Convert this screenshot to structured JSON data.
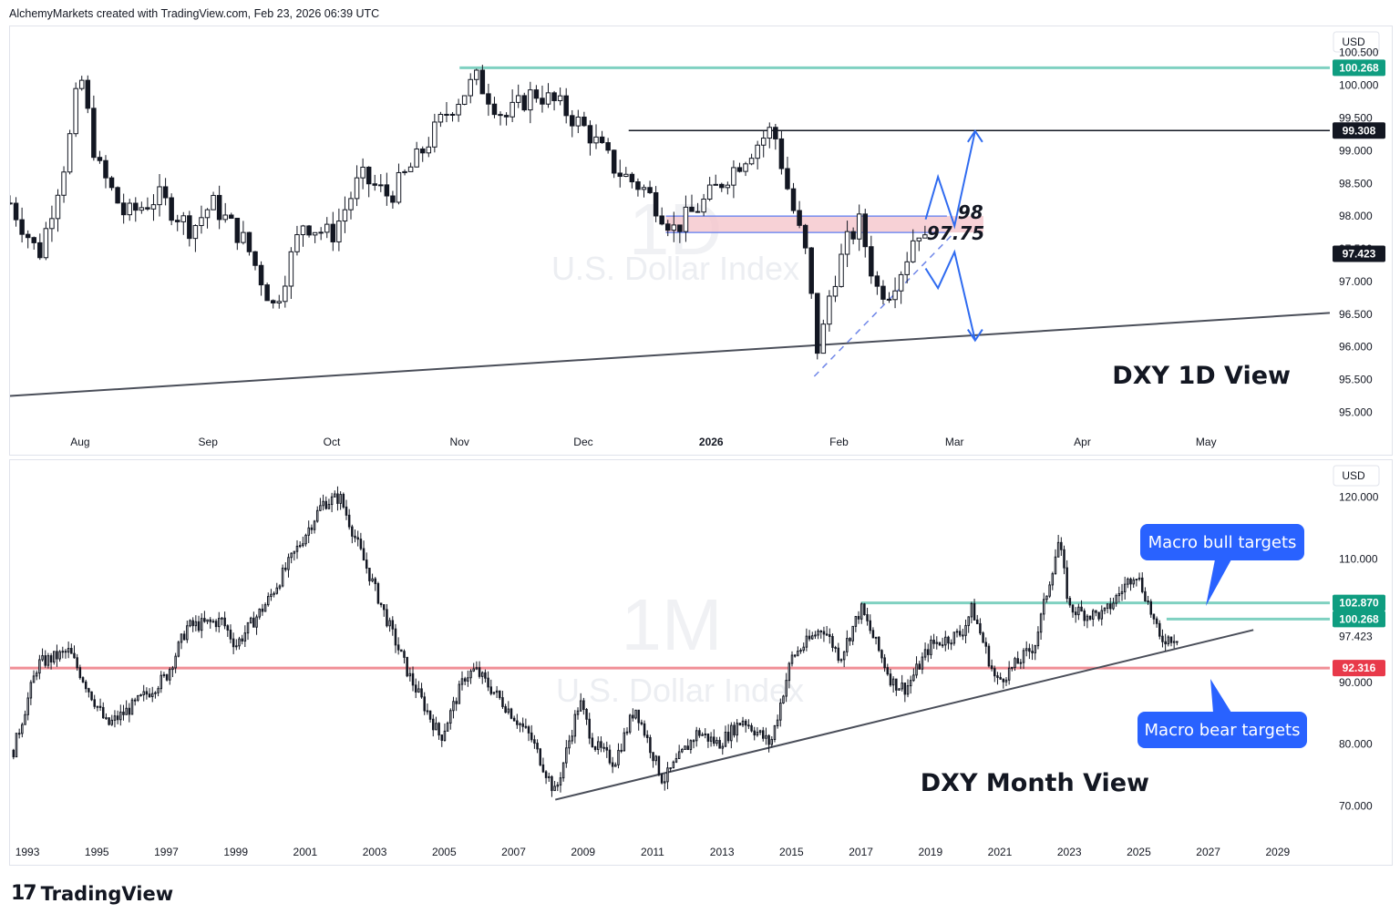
{
  "header": {
    "text": "AlchemyMarkets created with TradingView.com, Feb 23, 2026 06:39 UTC"
  },
  "footer": {
    "brand": "TradingView",
    "logo_icon": "tradingview-logo-icon"
  },
  "chart_data": [
    {
      "type": "candlestick",
      "name": "daily",
      "title": "DXY 1D View",
      "watermark": {
        "timeframe": "1D",
        "symbol": "U.S. Dollar Index"
      },
      "currency_label": "USD",
      "time_range": [
        "2025-07-15",
        "2026-05-31"
      ],
      "ylim": [
        94.7,
        100.9
      ],
      "x_ticks": [
        {
          "date": "2025-08-01",
          "label": "Aug"
        },
        {
          "date": "2025-09-01",
          "label": "Sep"
        },
        {
          "date": "2025-10-01",
          "label": "Oct"
        },
        {
          "date": "2025-11-01",
          "label": "Nov"
        },
        {
          "date": "2025-12-01",
          "label": "Dec"
        },
        {
          "date": "2026-01-01",
          "label": "2026"
        },
        {
          "date": "2026-02-01",
          "label": "Feb"
        },
        {
          "date": "2026-03-01",
          "label": "Mar"
        },
        {
          "date": "2026-04-01",
          "label": "Apr"
        },
        {
          "date": "2026-05-01",
          "label": "May"
        }
      ],
      "y_ticks": [
        "100.500",
        "100.000",
        "99.500",
        "99.000",
        "98.500",
        "98.000",
        "97.500",
        "97.000",
        "96.500",
        "96.000",
        "95.500",
        "95.000"
      ],
      "close_path": [
        [
          "2025-07-15",
          98.2
        ],
        [
          "2025-07-22",
          97.4
        ],
        [
          "2025-07-29",
          99.0
        ],
        [
          "2025-08-01",
          100.2
        ],
        [
          "2025-08-05",
          98.8
        ],
        [
          "2025-08-12",
          98.0
        ],
        [
          "2025-08-20",
          98.3
        ],
        [
          "2025-08-28",
          97.8
        ],
        [
          "2025-09-02",
          98.2
        ],
        [
          "2025-09-10",
          97.6
        ],
        [
          "2025-09-17",
          96.6
        ],
        [
          "2025-09-24",
          97.9
        ],
        [
          "2025-10-01",
          97.7
        ],
        [
          "2025-10-08",
          98.6
        ],
        [
          "2025-10-15",
          98.3
        ],
        [
          "2025-10-22",
          98.9
        ],
        [
          "2025-10-29",
          99.6
        ],
        [
          "2025-11-05",
          100.1
        ],
        [
          "2025-11-12",
          99.5
        ],
        [
          "2025-11-19",
          99.9
        ],
        [
          "2025-11-25",
          99.7
        ],
        [
          "2025-12-02",
          99.3
        ],
        [
          "2025-12-09",
          98.7
        ],
        [
          "2025-12-16",
          98.4
        ],
        [
          "2025-12-23",
          97.8
        ],
        [
          "2025-12-30",
          98.2
        ],
        [
          "2026-01-06",
          98.7
        ],
        [
          "2026-01-12",
          99.1
        ],
        [
          "2026-01-16",
          99.35
        ],
        [
          "2026-01-20",
          98.3
        ],
        [
          "2026-01-24",
          97.4
        ],
        [
          "2026-01-27",
          95.85
        ],
        [
          "2026-01-30",
          96.9
        ],
        [
          "2026-02-03",
          97.6
        ],
        [
          "2026-02-06",
          97.9
        ],
        [
          "2026-02-10",
          96.9
        ],
        [
          "2026-02-13",
          96.85
        ],
        [
          "2026-02-17",
          97.3
        ],
        [
          "2026-02-20",
          97.85
        ],
        [
          "2026-02-23",
          97.42
        ]
      ],
      "levels": [
        {
          "name": "resistance",
          "value": 100.268,
          "badge": "100.268",
          "color": "#7fd1c1",
          "from": "2025-11-01"
        },
        {
          "name": "resistance",
          "value": 99.308,
          "badge": "99.308",
          "color": "#131722",
          "from": "2025-12-12"
        },
        {
          "name": "zone",
          "from_value": 97.75,
          "to_value": 98.0,
          "labels": [
            "98",
            "97.75"
          ],
          "color": "#f5c6cc"
        }
      ],
      "last_price": {
        "value": 97.423,
        "badge": "97.423"
      },
      "trendline": {
        "from": [
          "2025-07-15",
          95.25
        ],
        "to": [
          "2026-05-31",
          96.52
        ]
      },
      "dashed_support": {
        "from": [
          "2026-01-26",
          95.55
        ],
        "to": [
          "2026-03-01",
          97.75
        ]
      },
      "projections": [
        {
          "name": "bull",
          "points": [
            [
              "2026-02-22",
              97.95
            ],
            [
              "2026-02-25",
              98.6
            ],
            [
              "2026-03-01",
              97.85
            ],
            [
              "2026-03-06",
              99.3
            ]
          ]
        },
        {
          "name": "bear",
          "points": [
            [
              "2026-02-22",
              97.2
            ],
            [
              "2026-02-25",
              96.9
            ],
            [
              "2026-03-01",
              97.45
            ],
            [
              "2026-03-06",
              96.1
            ]
          ]
        }
      ]
    },
    {
      "type": "candlestick",
      "name": "monthly",
      "title": "DXY Month View",
      "watermark": {
        "timeframe": "1M",
        "symbol": "U.S. Dollar Index"
      },
      "currency_label": "USD",
      "time_range": [
        1992.5,
        2030.5
      ],
      "ylim": [
        64,
        126
      ],
      "x_ticks": [
        "1993",
        "1995",
        "1997",
        "1999",
        "2001",
        "2003",
        "2005",
        "2007",
        "2009",
        "2011",
        "2013",
        "2015",
        "2017",
        "2019",
        "2021",
        "2023",
        "2025",
        "2027",
        "2029"
      ],
      "y_ticks": [
        "120.000",
        "110.000",
        "90.000",
        "80.000",
        "70.000"
      ],
      "close_path": [
        [
          1992.6,
          79
        ],
        [
          1993.3,
          93
        ],
        [
          1994.2,
          95
        ],
        [
          1995.3,
          83
        ],
        [
          1996.0,
          86
        ],
        [
          1997.0,
          91
        ],
        [
          1997.6,
          99
        ],
        [
          1998.6,
          100
        ],
        [
          1999.0,
          96
        ],
        [
          1999.9,
          103
        ],
        [
          2000.8,
          112
        ],
        [
          2001.5,
          119
        ],
        [
          2002.0,
          120
        ],
        [
          2002.6,
          111
        ],
        [
          2003.5,
          98
        ],
        [
          2004.0,
          91
        ],
        [
          2004.9,
          81
        ],
        [
          2005.6,
          91
        ],
        [
          2005.9,
          92
        ],
        [
          2006.8,
          86
        ],
        [
          2007.5,
          81
        ],
        [
          2008.2,
          72
        ],
        [
          2008.9,
          87
        ],
        [
          2009.3,
          80
        ],
        [
          2009.9,
          77
        ],
        [
          2010.5,
          86
        ],
        [
          2011.3,
          74
        ],
        [
          2012.3,
          82
        ],
        [
          2012.9,
          80
        ],
        [
          2013.6,
          84
        ],
        [
          2014.4,
          80
        ],
        [
          2015.0,
          94
        ],
        [
          2015.9,
          99
        ],
        [
          2016.4,
          94
        ],
        [
          2017.0,
          102
        ],
        [
          2017.9,
          90
        ],
        [
          2018.3,
          89
        ],
        [
          2019.0,
          96
        ],
        [
          2019.9,
          98
        ],
        [
          2020.2,
          102
        ],
        [
          2020.9,
          90
        ],
        [
          2021.3,
          92
        ],
        [
          2022.0,
          96
        ],
        [
          2022.7,
          113
        ],
        [
          2023.0,
          102
        ],
        [
          2023.5,
          101
        ],
        [
          2024.0,
          101
        ],
        [
          2024.9,
          108
        ],
        [
          2025.2,
          104
        ],
        [
          2025.6,
          97
        ],
        [
          2026.1,
          97.4
        ]
      ],
      "levels": [
        {
          "name": "resistance",
          "value": 102.87,
          "badge": "102.870",
          "color": "#7fd1c1",
          "from": 2017.0
        },
        {
          "name": "resistance",
          "value": 100.268,
          "badge": "100.268",
          "color": "#7fd1c1",
          "from": 2025.8
        },
        {
          "name": "support",
          "value": 92.316,
          "badge": "92.316",
          "color": "#f08f96",
          "from": 1992.5
        }
      ],
      "last_price": {
        "value": 97.423,
        "label": "97.423"
      },
      "trendline": {
        "from": [
          2008.2,
          71
        ],
        "to": [
          2028.3,
          98.5
        ]
      },
      "callouts": [
        {
          "text": "Macro bull targets",
          "color": "#2962ff",
          "anchor": "top"
        },
        {
          "text": "Macro bear targets",
          "color": "#2962ff",
          "anchor": "bottom"
        }
      ]
    }
  ]
}
